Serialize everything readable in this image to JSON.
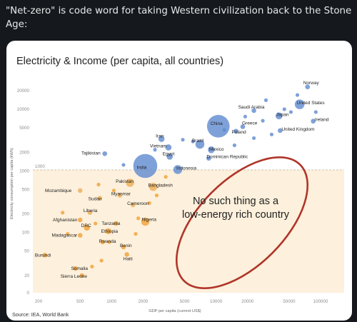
{
  "post": {
    "text": "\"Net-zero\" is code word for taking Western civilization back to the Stone Age:"
  },
  "chart_data": {
    "type": "scatter",
    "title": "Electricity & Income (per capita, all countries)",
    "xlabel": "GDP per capita (current US$)",
    "ylabel": "Electricity consumption per capita (kWh)",
    "x_scale": "log",
    "y_scale": "log",
    "x_ticks": [
      "200",
      "500",
      "1000",
      "2000",
      "5000",
      "10000",
      "20000",
      "50000",
      "100000"
    ],
    "y_ticks": [
      "20000",
      "10000",
      "5000",
      "2000",
      "1000",
      "500",
      "200",
      "100",
      "50",
      "20",
      "0"
    ],
    "threshold_label": "1000",
    "annotation": "No such thing as a low-energy rich country",
    "source": "Source: IEA, World Bank",
    "colors": {
      "high_income": "#6e95d3",
      "low_income": "#f1a43c",
      "ellipse": "#b0352a",
      "shade": "#fdf0dc"
    },
    "points": [
      {
        "name": "Norway",
        "x": 75000,
        "y": 23000
      },
      {
        "name": "United States",
        "x": 63000,
        "y": 12000
      },
      {
        "name": "Saudi Arabia",
        "x": 23000,
        "y": 9500
      },
      {
        "name": "Japan",
        "x": 40000,
        "y": 7800
      },
      {
        "name": "Ireland",
        "x": 85000,
        "y": 6400
      },
      {
        "name": "China",
        "x": 10500,
        "y": 5300
      },
      {
        "name": "Greece",
        "x": 18000,
        "y": 5200
      },
      {
        "name": "Poland",
        "x": 15500,
        "y": 4400
      },
      {
        "name": "United Kingdom",
        "x": 41000,
        "y": 4500
      },
      {
        "name": "Iran",
        "x": 3000,
        "y": 3300
      },
      {
        "name": "Brazil",
        "x": 7000,
        "y": 2700
      },
      {
        "name": "Mexico",
        "x": 9000,
        "y": 2200
      },
      {
        "name": "Vietnam",
        "x": 3500,
        "y": 2400
      },
      {
        "name": "Tajikistan",
        "x": 860,
        "y": 1900
      },
      {
        "name": "Egypt",
        "x": 3600,
        "y": 1700
      },
      {
        "name": "Dominican Republic",
        "x": 8500,
        "y": 1600
      },
      {
        "name": "India",
        "x": 2100,
        "y": 1200
      },
      {
        "name": "Indonesia",
        "x": 4300,
        "y": 1050
      },
      {
        "name": "Pakistan",
        "x": 1500,
        "y": 640
      },
      {
        "name": "Bangladesh",
        "x": 2500,
        "y": 550
      },
      {
        "name": "Mozambique",
        "x": 500,
        "y": 480
      },
      {
        "name": "Myanmar",
        "x": 1200,
        "y": 400
      },
      {
        "name": "Sudan",
        "x": 770,
        "y": 360
      },
      {
        "name": "Cameroon",
        "x": 1600,
        "y": 280
      },
      {
        "name": "Liberia",
        "x": 620,
        "y": 210
      },
      {
        "name": "Afghanistan",
        "x": 500,
        "y": 160
      },
      {
        "name": "Nigeria",
        "x": 2100,
        "y": 150
      },
      {
        "name": "Tanzania",
        "x": 1100,
        "y": 140
      },
      {
        "name": "DRC",
        "x": 580,
        "y": 120
      },
      {
        "name": "Ethiopia",
        "x": 930,
        "y": 105
      },
      {
        "name": "Madagascar",
        "x": 500,
        "y": 90
      },
      {
        "name": "Rwanda",
        "x": 820,
        "y": 70
      },
      {
        "name": "Benin",
        "x": 1300,
        "y": 58
      },
      {
        "name": "Haiti",
        "x": 1400,
        "y": 44
      },
      {
        "name": "Burundi",
        "x": 230,
        "y": 43
      },
      {
        "name": "Somalia",
        "x": 450,
        "y": 26
      },
      {
        "name": "Sierra Leone",
        "x": 520,
        "y": 20
      }
    ]
  }
}
